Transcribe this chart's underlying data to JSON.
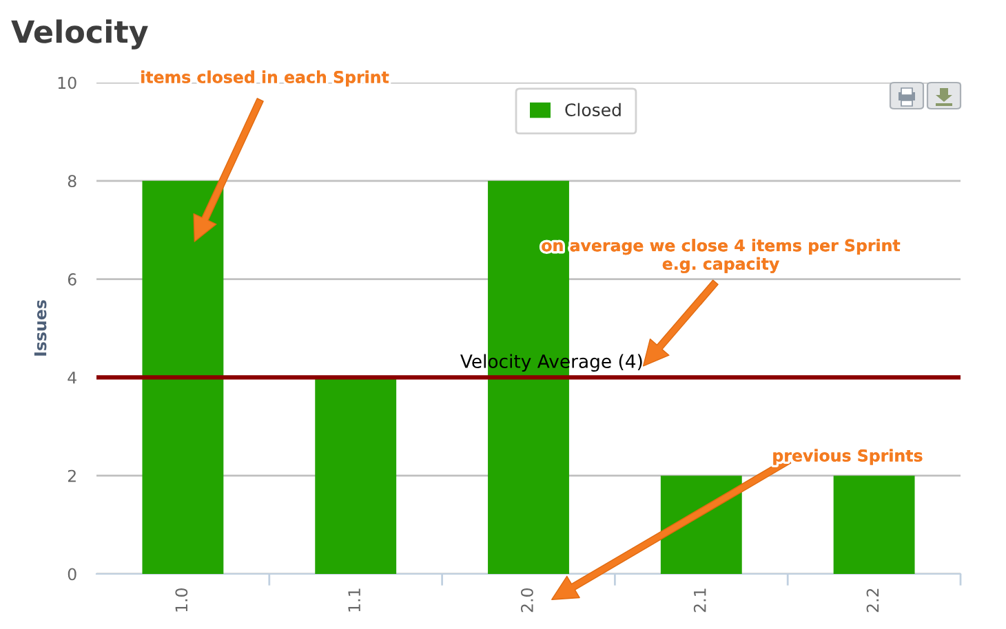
{
  "chart_data": {
    "type": "bar",
    "title": "Velocity",
    "ylabel": "Issues",
    "categories": [
      "1.0",
      "1.1",
      "2.0",
      "2.1",
      "2.2"
    ],
    "series": [
      {
        "name": "Closed",
        "color": "#23a400",
        "values": [
          8,
          4,
          8,
          2,
          2
        ]
      }
    ],
    "ylim": [
      0,
      10
    ],
    "yticks": [
      0,
      2,
      4,
      6,
      8,
      10
    ],
    "grid": "y",
    "legend": "top",
    "ref_lines": [
      {
        "axis": "y",
        "value": 4,
        "label": "Velocity Average (4)",
        "color": "#8b0000"
      }
    ],
    "annotations": [
      "items closed in each Sprint",
      "on average we close 4 items per Sprint\ne.g. capacity",
      "previous Sprints"
    ]
  }
}
